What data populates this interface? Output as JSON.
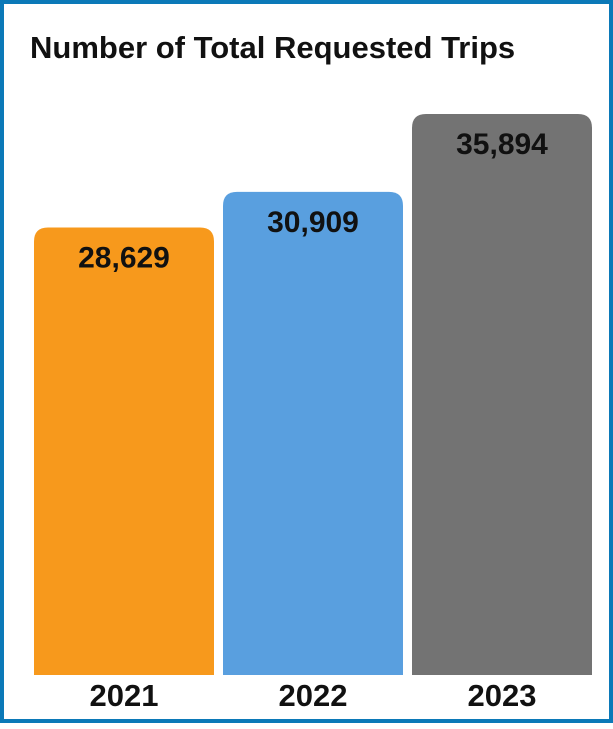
{
  "chart_data": {
    "type": "bar",
    "title": "Number of Total Requested Trips",
    "categories": [
      "2021",
      "2022",
      "2023"
    ],
    "values": [
      28629,
      30909,
      35894
    ],
    "value_labels": [
      "28,629",
      "30,909",
      "35,894"
    ],
    "colors": [
      "#f7991c",
      "#599fdf",
      "#737373"
    ],
    "xlabel": "",
    "ylabel": "",
    "grid": false,
    "legend": "none"
  },
  "frame_color": "#0b79b8"
}
